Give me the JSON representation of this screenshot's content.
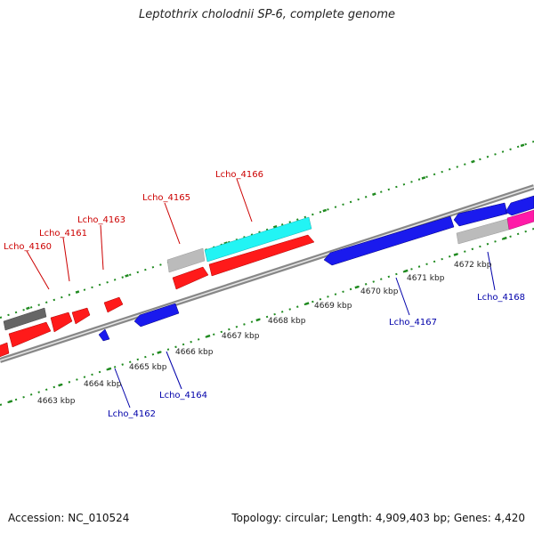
{
  "title": "Leptothrix cholodnii SP-6, complete genome",
  "footer": {
    "accession": "Accession: NC_010524",
    "summary": "Topology: circular; Length: 4,909,403 bp; Genes: 4,420"
  },
  "colors": {
    "forward_gene": "#ff1a1a",
    "reverse_gene": "#1a1aee",
    "grey_feature": "#bbbbbb",
    "dark_feature": "#666666",
    "cyan_feature": "#22f4f4",
    "magenta_feature": "#ff1aa8",
    "tick": "#1f8a1f",
    "backbone": "#888888",
    "forward_label": "#cc0000",
    "reverse_label": "#0000aa"
  },
  "scale_labels": [
    "4663 kbp",
    "4664 kbp",
    "4665 kbp",
    "4666 kbp",
    "4667 kbp",
    "4668 kbp",
    "4669 kbp",
    "4670 kbp",
    "4671 kbp",
    "4672 kbp"
  ],
  "forward_labels": [
    "Lcho_4160",
    "Lcho_4161",
    "Lcho_4163",
    "Lcho_4165",
    "Lcho_4166"
  ],
  "reverse_labels": [
    "Lcho_4162",
    "Lcho_4164",
    "Lcho_4167",
    "Lcho_4168"
  ]
}
